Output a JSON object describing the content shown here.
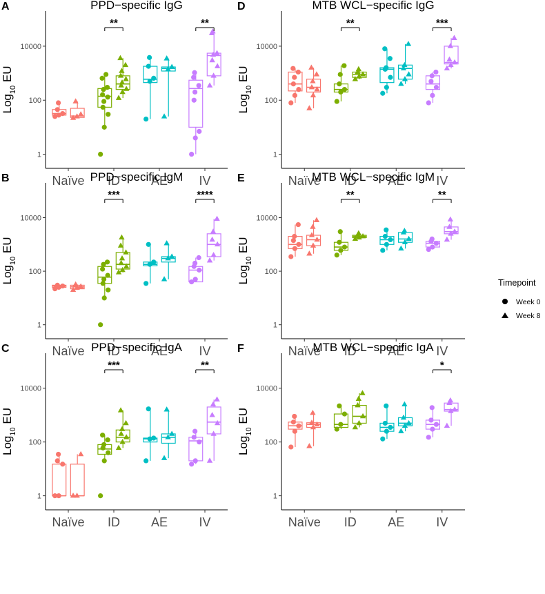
{
  "colors": {
    "Naive": "#F8766D",
    "ID": "#7CAE00",
    "AE": "#00BFC4",
    "IV": "#C77CFF"
  },
  "legend": {
    "title": "Timepoint",
    "items": [
      {
        "label": "Week 0",
        "shape": "circle"
      },
      {
        "label": "Week 8",
        "shape": "triangle"
      }
    ]
  },
  "y_axis_label": {
    "prefix": "Log",
    "sub": "10",
    "suffix": " EU"
  },
  "chart_data": [
    {
      "letter": "A",
      "title": "PPD−specific IgG",
      "type": "box",
      "yscale": "log10",
      "ylim": [
        0.3,
        200000
      ],
      "yticks": [
        {
          "v": 1,
          "label": "1"
        },
        {
          "v": 100,
          "label": "100"
        },
        {
          "v": 10000,
          "label": "10000"
        }
      ],
      "groups": [
        "Naïve",
        "ID",
        "AE",
        "IV"
      ],
      "boxes": [
        {
          "group": 0,
          "week": 0,
          "q1": 28,
          "med": 32,
          "q3": 45,
          "low": 25,
          "high": 80,
          "points": [
            25,
            28,
            32,
            45,
            80
          ]
        },
        {
          "group": 0,
          "week": 8,
          "q1": 23,
          "med": 26,
          "q3": 50,
          "low": 22,
          "high": 90,
          "points": [
            22,
            25,
            30,
            90
          ]
        },
        {
          "group": 1,
          "week": 0,
          "q1": 55,
          "med": 140,
          "q3": 270,
          "low": 10,
          "high": 1000,
          "points": [
            1,
            10,
            30,
            55,
            90,
            130,
            160,
            250,
            300,
            650,
            900
          ]
        },
        {
          "group": 1,
          "week": 8,
          "q1": 250,
          "med": 400,
          "q3": 800,
          "low": 120,
          "high": 3600,
          "points": [
            120,
            200,
            260,
            350,
            450,
            600,
            800,
            1200,
            2000,
            3600
          ]
        },
        {
          "group": 2,
          "week": 0,
          "q1": 450,
          "med": 600,
          "q3": 1800,
          "low": 20,
          "high": 3800,
          "points": [
            20,
            500,
            650,
            1800,
            3800
          ]
        },
        {
          "group": 2,
          "week": 8,
          "q1": 1200,
          "med": 1500,
          "q3": 1700,
          "low": 25,
          "high": 3500,
          "points": [
            25,
            1400,
            1700,
            3500
          ]
        },
        {
          "group": 3,
          "week": 0,
          "q1": 10,
          "med": 270,
          "q3": 550,
          "low": 1,
          "high": 1050,
          "points": [
            1,
            4,
            7,
            100,
            200,
            350,
            700,
            1050
          ]
        },
        {
          "group": 3,
          "week": 8,
          "q1": 800,
          "med": 4500,
          "q3": 5500,
          "low": 350,
          "high": 35000,
          "points": [
            350,
            800,
            1800,
            3000,
            4800,
            5500,
            30000,
            35000
          ]
        }
      ],
      "sig": [
        {
          "group": 1,
          "label": "**"
        },
        {
          "group": 3,
          "label": "**"
        }
      ]
    },
    {
      "letter": "B",
      "title": "PPD−specific IgM",
      "type": "box",
      "yscale": "log10",
      "ylim": [
        0.3,
        200000
      ],
      "yticks": [
        {
          "v": 1,
          "label": "1"
        },
        {
          "v": 100,
          "label": "100"
        },
        {
          "v": 10000,
          "label": "10000"
        }
      ],
      "groups": [
        "Naïve",
        "ID",
        "AE",
        "IV"
      ],
      "boxes": [
        {
          "group": 0,
          "week": 0,
          "q1": 25,
          "med": 28,
          "q3": 30,
          "low": 22,
          "high": 30,
          "points": [
            22,
            25,
            28,
            30
          ]
        },
        {
          "group": 0,
          "week": 8,
          "q1": 22,
          "med": 26,
          "q3": 30,
          "low": 20,
          "high": 32,
          "points": [
            20,
            24,
            27,
            32
          ]
        },
        {
          "group": 1,
          "week": 0,
          "q1": 35,
          "med": 60,
          "q3": 150,
          "low": 10,
          "high": 220,
          "points": [
            1,
            10,
            20,
            35,
            50,
            70,
            120,
            180,
            220
          ]
        },
        {
          "group": 1,
          "week": 8,
          "q1": 120,
          "med": 180,
          "q3": 500,
          "low": 90,
          "high": 1800,
          "points": [
            90,
            110,
            150,
            200,
            300,
            500,
            900,
            1800
          ]
        },
        {
          "group": 2,
          "week": 0,
          "q1": 160,
          "med": 180,
          "q3": 220,
          "low": 35,
          "high": 1000,
          "points": [
            35,
            180,
            220,
            1000
          ]
        },
        {
          "group": 2,
          "week": 8,
          "q1": 220,
          "med": 300,
          "q3": 350,
          "low": 50,
          "high": 1100,
          "points": [
            50,
            300,
            350,
            1100
          ]
        },
        {
          "group": 3,
          "week": 0,
          "q1": 40,
          "med": 110,
          "q3": 150,
          "low": 40,
          "high": 320,
          "points": [
            40,
            50,
            110,
            150,
            200,
            320
          ]
        },
        {
          "group": 3,
          "week": 8,
          "q1": 350,
          "med": 1000,
          "q3": 2500,
          "low": 250,
          "high": 9000,
          "points": [
            250,
            400,
            1000,
            1500,
            3000,
            9000
          ]
        }
      ],
      "sig": [
        {
          "group": 1,
          "label": "***"
        },
        {
          "group": 3,
          "label": "****"
        }
      ]
    },
    {
      "letter": "C",
      "title": "PPD−specific IgA",
      "type": "box",
      "yscale": "log10",
      "ylim": [
        0.3,
        200000
      ],
      "yticks": [
        {
          "v": 1,
          "label": "1"
        },
        {
          "v": 100,
          "label": "100"
        },
        {
          "v": 10000,
          "label": "10000"
        }
      ],
      "groups": [
        "Naïve",
        "ID",
        "AE",
        "IV"
      ],
      "boxes": [
        {
          "group": 0,
          "week": 0,
          "q1": 1,
          "med": 1,
          "q3": 15,
          "low": 1,
          "high": 35,
          "points": [
            1,
            1,
            15,
            20,
            35
          ]
        },
        {
          "group": 0,
          "week": 8,
          "q1": 1,
          "med": 1,
          "q3": 15,
          "low": 1,
          "high": 35,
          "points": [
            1,
            1,
            35
          ]
        },
        {
          "group": 1,
          "week": 0,
          "q1": 35,
          "med": 55,
          "q3": 80,
          "low": 20,
          "high": 180,
          "points": [
            1,
            20,
            40,
            60,
            80,
            120,
            180
          ]
        },
        {
          "group": 1,
          "week": 8,
          "q1": 100,
          "med": 150,
          "q3": 280,
          "low": 60,
          "high": 1500,
          "points": [
            60,
            100,
            150,
            200,
            300,
            500,
            1500
          ]
        },
        {
          "group": 2,
          "week": 0,
          "q1": 100,
          "med": 130,
          "q3": 140,
          "low": 20,
          "high": 1700,
          "points": [
            20,
            130,
            140,
            1700
          ]
        },
        {
          "group": 2,
          "week": 8,
          "q1": 90,
          "med": 150,
          "q3": 200,
          "low": 25,
          "high": 1600,
          "points": [
            25,
            150,
            200,
            1600
          ]
        },
        {
          "group": 3,
          "week": 0,
          "q1": 20,
          "med": 110,
          "q3": 150,
          "low": 15,
          "high": 250,
          "points": [
            15,
            20,
            100,
            150,
            250
          ]
        },
        {
          "group": 3,
          "week": 8,
          "q1": 200,
          "med": 550,
          "q3": 2000,
          "low": 20,
          "high": 3800,
          "points": [
            20,
            200,
            500,
            1000,
            2500,
            3800
          ]
        }
      ],
      "sig": [
        {
          "group": 1,
          "label": "***"
        },
        {
          "group": 3,
          "label": "**"
        }
      ]
    },
    {
      "letter": "D",
      "title": "MTB WCL−specific IgG",
      "type": "box",
      "yscale": "log10",
      "ylim": [
        0.3,
        200000
      ],
      "yticks": [
        {
          "v": 1,
          "label": "1"
        },
        {
          "v": 100,
          "label": "100"
        },
        {
          "v": 10000,
          "label": "10000"
        }
      ],
      "groups": [
        "Naïve",
        "ID",
        "AE",
        "IV"
      ],
      "boxes": [
        {
          "group": 0,
          "week": 0,
          "q1": 220,
          "med": 400,
          "q3": 1100,
          "low": 80,
          "high": 1500,
          "points": [
            80,
            150,
            250,
            400,
            700,
            1100,
            1500
          ]
        },
        {
          "group": 0,
          "week": 8,
          "q1": 200,
          "med": 300,
          "q3": 600,
          "low": 50,
          "high": 1600,
          "points": [
            50,
            150,
            250,
            300,
            500,
            900,
            1600
          ]
        },
        {
          "group": 1,
          "week": 0,
          "q1": 200,
          "med": 250,
          "q3": 400,
          "low": 90,
          "high": 1900,
          "points": [
            90,
            200,
            250,
            400,
            900,
            1900
          ]
        },
        {
          "group": 1,
          "week": 8,
          "q1": 700,
          "med": 900,
          "q3": 1100,
          "low": 600,
          "high": 1400,
          "points": [
            600,
            750,
            900,
            1100,
            1400
          ]
        },
        {
          "group": 2,
          "week": 0,
          "q1": 450,
          "med": 1400,
          "q3": 1600,
          "low": 180,
          "high": 8000,
          "points": [
            180,
            300,
            700,
            1400,
            1600,
            3500,
            8000
          ]
        },
        {
          "group": 2,
          "week": 8,
          "q1": 600,
          "med": 1500,
          "q3": 2000,
          "low": 400,
          "high": 12000,
          "points": [
            400,
            600,
            900,
            1500,
            2000,
            12000
          ]
        },
        {
          "group": 3,
          "week": 0,
          "q1": 250,
          "med": 400,
          "q3": 800,
          "low": 80,
          "high": 1100,
          "points": [
            80,
            150,
            300,
            500,
            800,
            1100
          ]
        },
        {
          "group": 3,
          "week": 8,
          "q1": 2200,
          "med": 2500,
          "q3": 10000,
          "low": 1500,
          "high": 20000,
          "points": [
            1500,
            2000,
            2500,
            3200,
            10000,
            20000
          ]
        }
      ],
      "sig": [
        {
          "group": 1,
          "label": "**"
        },
        {
          "group": 3,
          "label": "***"
        }
      ]
    },
    {
      "letter": "E",
      "title": "MTB WCL−specific IgM",
      "type": "box",
      "yscale": "log10",
      "ylim": [
        0.3,
        200000
      ],
      "yticks": [
        {
          "v": 1,
          "label": "1"
        },
        {
          "v": 100,
          "label": "100"
        },
        {
          "v": 10000,
          "label": "10000"
        }
      ],
      "groups": [
        "Naïve",
        "ID",
        "AE",
        "IV"
      ],
      "boxes": [
        {
          "group": 0,
          "week": 0,
          "q1": 700,
          "med": 1000,
          "q3": 2000,
          "low": 350,
          "high": 5500,
          "points": [
            350,
            700,
            1000,
            1400,
            2000,
            5500
          ]
        },
        {
          "group": 0,
          "week": 8,
          "q1": 900,
          "med": 1500,
          "q3": 2200,
          "low": 450,
          "high": 8000,
          "points": [
            450,
            900,
            1500,
            2200,
            4500,
            8000
          ]
        },
        {
          "group": 1,
          "week": 0,
          "q1": 600,
          "med": 800,
          "q3": 1200,
          "low": 400,
          "high": 3000,
          "points": [
            400,
            600,
            800,
            1200,
            3000
          ]
        },
        {
          "group": 1,
          "week": 8,
          "q1": 1800,
          "med": 2000,
          "q3": 2200,
          "low": 1600,
          "high": 2600,
          "points": [
            1600,
            1800,
            2000,
            2200,
            2600
          ]
        },
        {
          "group": 2,
          "week": 0,
          "q1": 1000,
          "med": 1500,
          "q3": 2000,
          "low": 600,
          "high": 3500,
          "points": [
            600,
            1000,
            1500,
            2000,
            3500
          ]
        },
        {
          "group": 2,
          "week": 8,
          "q1": 1200,
          "med": 1600,
          "q3": 2800,
          "low": 700,
          "high": 3200,
          "points": [
            700,
            1200,
            1600,
            2800,
            3200
          ]
        },
        {
          "group": 3,
          "week": 0,
          "q1": 800,
          "med": 1100,
          "q3": 1300,
          "low": 650,
          "high": 1600,
          "points": [
            650,
            800,
            1100,
            1300,
            1600
          ]
        },
        {
          "group": 3,
          "week": 8,
          "q1": 2500,
          "med": 3000,
          "q3": 4500,
          "low": 1500,
          "high": 8500,
          "points": [
            1500,
            2500,
            3000,
            4500,
            8500
          ]
        }
      ],
      "sig": [
        {
          "group": 1,
          "label": "**"
        },
        {
          "group": 3,
          "label": "**"
        }
      ]
    },
    {
      "letter": "F",
      "title": "MTB WCL−specific IgA",
      "type": "box",
      "yscale": "log10",
      "ylim": [
        0.3,
        200000
      ],
      "yticks": [
        {
          "v": 1,
          "label": "1"
        },
        {
          "v": 100,
          "label": "100"
        },
        {
          "v": 10000,
          "label": "10000"
        }
      ],
      "groups": [
        "Naïve",
        "ID",
        "AE",
        "IV"
      ],
      "boxes": [
        {
          "group": 0,
          "week": 0,
          "q1": 300,
          "med": 400,
          "q3": 550,
          "low": 65,
          "high": 900,
          "points": [
            65,
            250,
            400,
            550,
            900
          ]
        },
        {
          "group": 0,
          "week": 8,
          "q1": 350,
          "med": 450,
          "q3": 520,
          "low": 70,
          "high": 1200,
          "points": [
            70,
            350,
            450,
            520,
            1200
          ]
        },
        {
          "group": 1,
          "week": 0,
          "q1": 350,
          "med": 450,
          "q3": 1100,
          "low": 300,
          "high": 2200,
          "points": [
            300,
            450,
            1100,
            2200
          ]
        },
        {
          "group": 1,
          "week": 8,
          "q1": 500,
          "med": 900,
          "q3": 2300,
          "low": 350,
          "high": 6500,
          "points": [
            350,
            500,
            900,
            2300,
            4000,
            6500
          ]
        },
        {
          "group": 2,
          "week": 0,
          "q1": 250,
          "med": 350,
          "q3": 500,
          "low": 130,
          "high": 2200,
          "points": [
            130,
            250,
            350,
            500,
            2200
          ]
        },
        {
          "group": 2,
          "week": 8,
          "q1": 400,
          "med": 500,
          "q3": 800,
          "low": 250,
          "high": 2500,
          "points": [
            250,
            400,
            500,
            800,
            2500
          ]
        },
        {
          "group": 3,
          "week": 0,
          "q1": 300,
          "med": 450,
          "q3": 650,
          "low": 150,
          "high": 1900,
          "points": [
            150,
            300,
            450,
            650,
            1900
          ]
        },
        {
          "group": 3,
          "week": 8,
          "q1": 1400,
          "med": 1600,
          "q3": 2800,
          "low": 400,
          "high": 3500,
          "points": [
            400,
            1400,
            1600,
            2800,
            3500
          ]
        }
      ],
      "sig": [
        {
          "group": 3,
          "label": "*"
        }
      ]
    }
  ]
}
